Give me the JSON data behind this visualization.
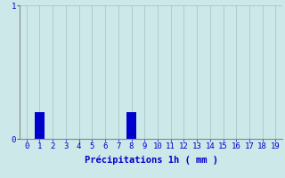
{
  "categories": [
    0,
    1,
    2,
    3,
    4,
    5,
    6,
    7,
    8,
    9,
    10,
    11,
    12,
    13,
    14,
    15,
    16,
    17,
    18,
    19
  ],
  "values": [
    0,
    0.2,
    0,
    0,
    0,
    0,
    0,
    0,
    0.2,
    0,
    0,
    0,
    0,
    0,
    0,
    0,
    0,
    0,
    0,
    0
  ],
  "bar_color": "#0000cc",
  "background_color": "#cce8e8",
  "grid_color": "#aac8c8",
  "axis_label_color": "#0000cc",
  "xlabel": "Précipitations 1h ( mm )",
  "ylim": [
    0,
    1
  ],
  "xlim": [
    -0.5,
    19.5
  ],
  "yticks": [
    0,
    1
  ],
  "xlabel_fontsize": 7.5,
  "tick_fontsize": 6.5,
  "bar_width": 0.7
}
